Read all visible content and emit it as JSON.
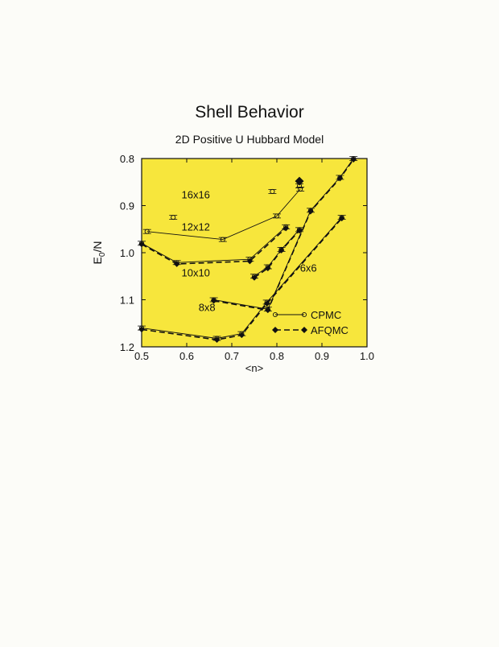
{
  "page": {
    "title": "Shell Behavior",
    "subtitle": "2D Positive U Hubbard Model"
  },
  "chart_data": {
    "type": "line",
    "title": "Shell Behavior",
    "subtitle": "2D Positive U Hubbard Model",
    "xlabel": "<n>",
    "ylabel_main": "E",
    "ylabel_sub": "0",
    "ylabel_suffix": "/N",
    "xlim": [
      0.5,
      1.0
    ],
    "ylim": [
      1.2,
      0.8
    ],
    "y_inverted": true,
    "xticks": [
      0.5,
      0.6,
      0.7,
      0.8,
      0.9,
      1.0
    ],
    "xtick_labels": [
      "0.5",
      "0.6",
      "0.7",
      "0.8",
      "0.9",
      "1.0"
    ],
    "yticks": [
      0.8,
      0.9,
      1.0,
      1.1,
      1.2
    ],
    "ytick_labels": [
      "0.8",
      "0.9",
      "1.0",
      "1.1",
      "1.2"
    ],
    "plot_background": "#f7e63c",
    "legend_position": "bottom-right",
    "legend": [
      {
        "name": "CPMC",
        "style": "open-circle-solid"
      },
      {
        "name": "AFQMC",
        "style": "filled-diamond-dashed"
      }
    ],
    "lattice_labels": [
      {
        "text": "16x16",
        "x": 0.62,
        "y": 0.885
      },
      {
        "text": "12x12",
        "x": 0.62,
        "y": 0.953
      },
      {
        "text": "10x10",
        "x": 0.62,
        "y": 1.05
      },
      {
        "text": "8x8",
        "x": 0.645,
        "y": 1.124
      },
      {
        "text": "6x6",
        "x": 0.87,
        "y": 1.04
      }
    ],
    "series": [
      {
        "name": "CPMC",
        "group": "16x16",
        "connected": true,
        "x": [
          0.512,
          0.68,
          0.8,
          0.852
        ],
        "y": [
          0.955,
          0.972,
          0.922,
          0.865
        ]
      },
      {
        "name": "CPMC",
        "group": "16x16",
        "connected": false,
        "x": [
          0.57,
          0.79,
          0.85
        ],
        "y": [
          0.925,
          0.87,
          0.858
        ]
      },
      {
        "name": "CPMC",
        "group": "12x12",
        "x": [
          0.5,
          0.578,
          0.74,
          0.82
        ],
        "y": [
          0.98,
          1.021,
          1.014,
          0.945
        ]
      },
      {
        "name": "AFQMC",
        "group": "12x12",
        "x": [
          0.5,
          0.578,
          0.74,
          0.82
        ],
        "y": [
          0.982,
          1.024,
          1.018,
          0.948
        ]
      },
      {
        "name": "CPMC",
        "group": "10x10",
        "x": [
          0.75,
          0.78,
          0.81,
          0.85
        ],
        "y": [
          1.05,
          1.03,
          0.993,
          0.951
        ]
      },
      {
        "name": "AFQMC",
        "group": "10x10",
        "x": [
          0.75,
          0.78,
          0.81,
          0.85
        ],
        "y": [
          1.053,
          1.033,
          0.995,
          0.953
        ]
      },
      {
        "name": "CPMC",
        "group": "8x8",
        "x": [
          0.66,
          0.78,
          0.875,
          0.94,
          0.97
        ],
        "y": [
          1.1,
          1.12,
          0.91,
          0.84,
          0.8
        ]
      },
      {
        "name": "AFQMC",
        "group": "8x8",
        "x": [
          0.66,
          0.78,
          0.875,
          0.94,
          0.97
        ],
        "y": [
          1.102,
          1.122,
          0.912,
          0.842,
          0.802
        ]
      },
      {
        "name": "CPMC",
        "group": "6x6",
        "x": [
          0.5,
          0.667,
          0.722,
          0.778,
          0.944
        ],
        "y": [
          1.16,
          1.182,
          1.172,
          1.105,
          0.925
        ]
      },
      {
        "name": "AFQMC",
        "group": "6x6",
        "x": [
          0.5,
          0.667,
          0.722,
          0.778,
          0.944
        ],
        "y": [
          1.163,
          1.185,
          1.175,
          1.108,
          0.927
        ]
      },
      {
        "name": "AFQMC",
        "group": "16x16",
        "connected": false,
        "x": [
          0.85
        ],
        "y": [
          0.848
        ]
      }
    ]
  }
}
